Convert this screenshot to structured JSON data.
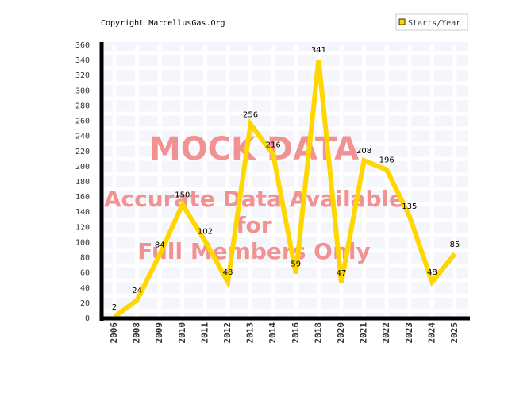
{
  "chart_data": {
    "type": "line",
    "title": "Copyright MarcellusGas.Org",
    "legend": "Starts/Year",
    "color": "#ffd700",
    "categories": [
      "2006",
      "2008",
      "2009",
      "2010",
      "2011",
      "2012",
      "2013",
      "2014",
      "2016",
      "2018",
      "2020",
      "2021",
      "2022",
      "2023",
      "2024",
      "2025"
    ],
    "values": [
      2,
      24,
      84,
      150,
      102,
      48,
      256,
      216,
      59,
      341,
      47,
      208,
      196,
      135,
      48,
      85
    ],
    "ylim": [
      0,
      360
    ],
    "yticks": [
      0,
      20,
      40,
      60,
      80,
      100,
      120,
      140,
      160,
      180,
      200,
      220,
      240,
      260,
      280,
      300,
      320,
      340,
      360
    ],
    "grid": true,
    "annotations": [
      "MOCK DATA",
      "Accurate Data Available",
      "for",
      "Full Members Only"
    ]
  }
}
